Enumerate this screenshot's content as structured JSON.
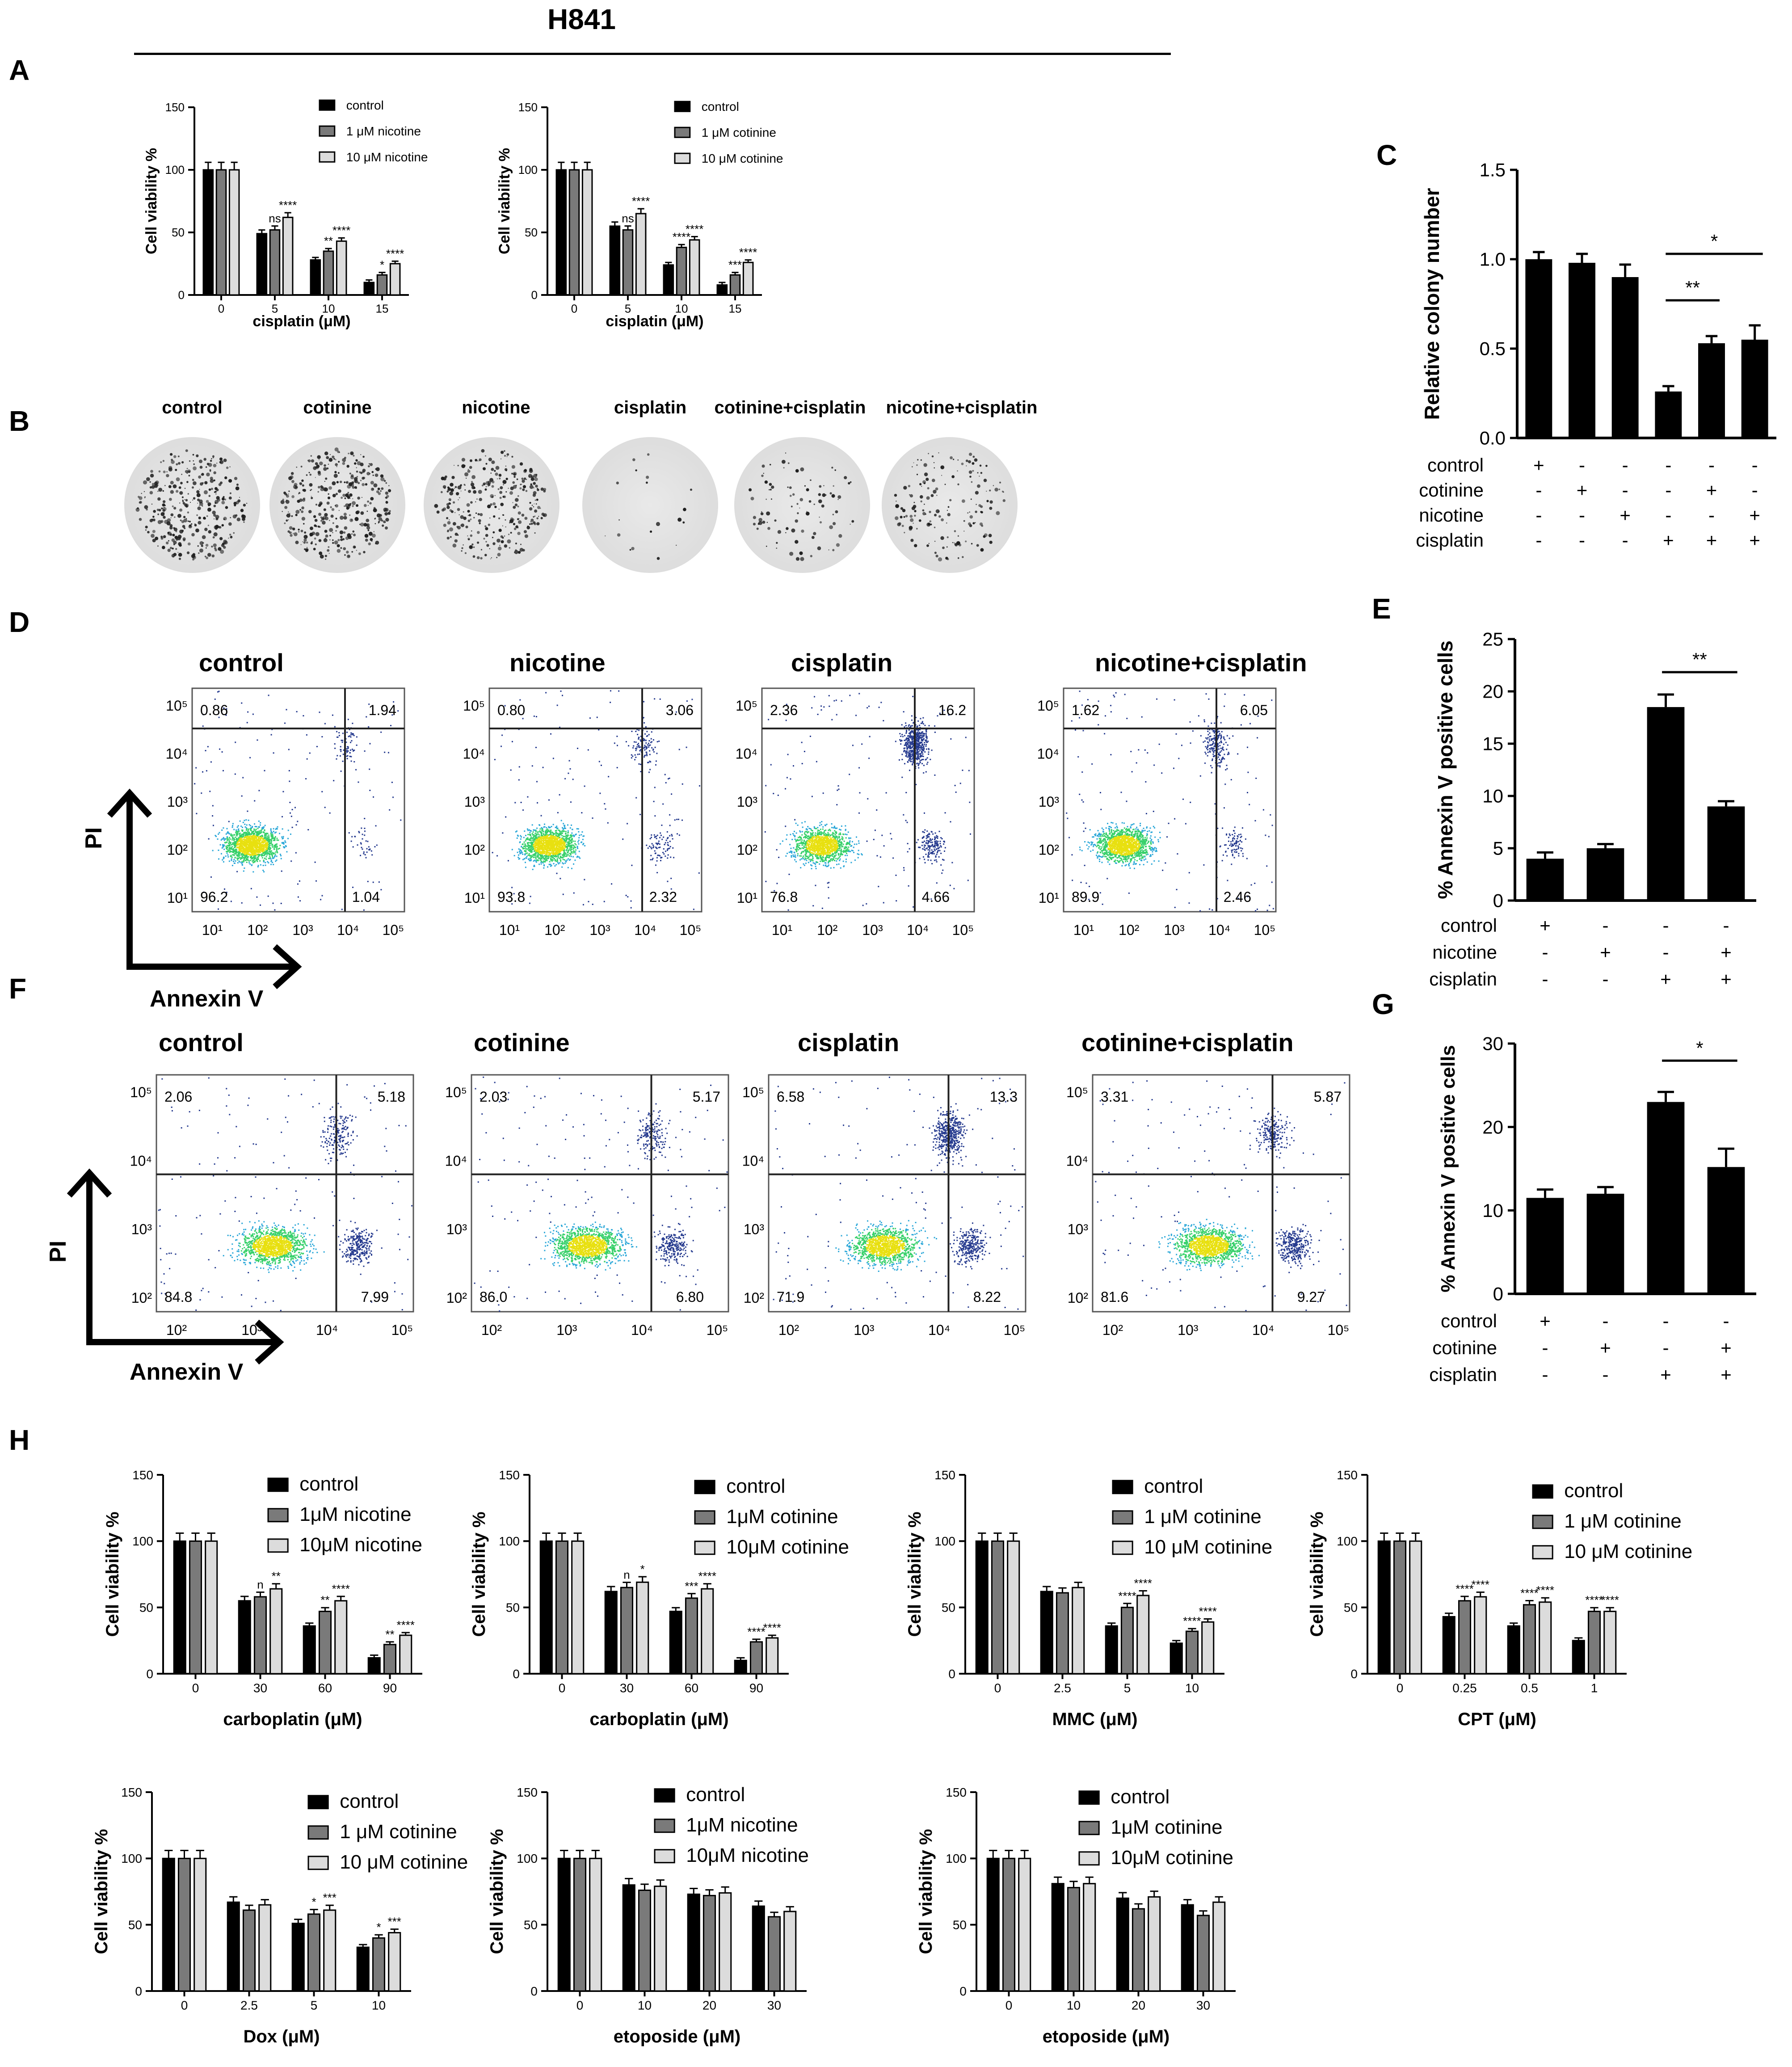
{
  "header": {
    "title": "H841"
  },
  "panel_letters": [
    "A",
    "B",
    "C",
    "D",
    "E",
    "F",
    "G",
    "H"
  ],
  "axis_labels": {
    "pi": "PI",
    "annexin": "Annex​in V"
  },
  "colony_dishes": {
    "labels": [
      "control",
      "cotinine",
      "nicotine",
      "cisplatin",
      "cotinine+cisplatin",
      "nicotine+cisplatin"
    ],
    "colony_density": [
      0.9,
      1.0,
      0.85,
      0.05,
      0.25,
      0.45
    ]
  },
  "flow_D": [
    {
      "title": "control",
      "q": [
        "0.86",
        "1.94",
        "96.2",
        "1.04"
      ],
      "ticks": [
        "10¹",
        "10²",
        "10³",
        "10⁴",
        "10⁵"
      ]
    },
    {
      "title": "nicotine",
      "q": [
        "0.80",
        "3.06",
        "93.8",
        "2.32"
      ],
      "ticks": [
        "10¹",
        "10²",
        "10³",
        "10⁴",
        "10⁵"
      ]
    },
    {
      "title": "cisplatin",
      "q": [
        "2.36",
        "16.2",
        "76.8",
        "4.66"
      ],
      "ticks": [
        "10¹",
        "10²",
        "10³",
        "10⁴",
        "10⁵"
      ]
    },
    {
      "title": "nicotine+cisplatin",
      "q": [
        "1.62",
        "6.05",
        "89.9",
        "2.46"
      ],
      "ticks": [
        "10¹",
        "10²",
        "10³",
        "10⁴",
        "10⁵"
      ]
    }
  ],
  "flow_F": [
    {
      "title": "control",
      "q": [
        "2.06",
        "5.18",
        "84.8",
        "7.99"
      ],
      "ticks": [
        "10²",
        "10³",
        "10⁴",
        "10⁵"
      ]
    },
    {
      "title": "cotinine",
      "q": [
        "2.03",
        "5.17",
        "86.0",
        "6.80"
      ],
      "ticks": [
        "10²",
        "10³",
        "10⁴",
        "10⁵"
      ]
    },
    {
      "title": "cisplatin",
      "q": [
        "6.58",
        "13.3",
        "71.9",
        "8.22"
      ],
      "ticks": [
        "10²",
        "10³",
        "10⁴",
        "10⁵"
      ]
    },
    {
      "title": "cotinine+cisplatin",
      "q": [
        "3.31",
        "5.87",
        "81.6",
        "9.27"
      ],
      "ticks": [
        "10²",
        "10³",
        "10⁴",
        "10⁵"
      ]
    }
  ],
  "chart_data": [
    {
      "id": "A1",
      "type": "bar",
      "ylabel": "Cell viability %",
      "xlabel": "cisplatin (μM)",
      "ylim": [
        0,
        150
      ],
      "yticks": [
        0,
        50,
        100,
        150
      ],
      "categories": [
        "0",
        "5",
        "10",
        "15"
      ],
      "series": [
        {
          "name": "control",
          "values": [
            100,
            49,
            28,
            10
          ]
        },
        {
          "name": "1 μM nicotine",
          "values": [
            100,
            52,
            35,
            16
          ]
        },
        {
          "name": "10 μM nicotine",
          "values": [
            100,
            62,
            43,
            25
          ]
        }
      ],
      "annotations": [
        [
          "",
          "",
          ""
        ],
        [
          "",
          "ns",
          "****"
        ],
        [
          "",
          "**",
          "****"
        ],
        [
          "",
          "*",
          "****"
        ]
      ]
    },
    {
      "id": "A2",
      "type": "bar",
      "ylabel": "Cell viability %",
      "xlabel": "cisplatin (μM)",
      "ylim": [
        0,
        150
      ],
      "yticks": [
        0,
        50,
        100,
        150
      ],
      "categories": [
        "0",
        "5",
        "10",
        "15"
      ],
      "series": [
        {
          "name": "control",
          "values": [
            100,
            55,
            24,
            8
          ]
        },
        {
          "name": "1 μM cotinine",
          "values": [
            100,
            52,
            38,
            16
          ]
        },
        {
          "name": "10 μM cotinine",
          "values": [
            100,
            65,
            44,
            26
          ]
        }
      ],
      "annotations": [
        [
          "",
          "",
          ""
        ],
        [
          "",
          "ns",
          "****"
        ],
        [
          "",
          "****",
          "****"
        ],
        [
          "",
          "***",
          "****"
        ]
      ]
    },
    {
      "id": "C",
      "type": "bar",
      "ylabel": "Relative colony number",
      "ylim": [
        0,
        1.5
      ],
      "yticks": [
        "0.0",
        "0.5",
        "1.0",
        "1.5"
      ],
      "categories": [
        "1",
        "2",
        "3",
        "4",
        "5",
        "6"
      ],
      "values": [
        1.0,
        0.98,
        0.9,
        0.26,
        0.53,
        0.55
      ],
      "errors": [
        0.04,
        0.05,
        0.07,
        0.03,
        0.04,
        0.08
      ],
      "conditions": [
        {
          "name": "control",
          "marks": [
            "+",
            "-",
            "-",
            "-",
            "-",
            "-"
          ]
        },
        {
          "name": "cotinine",
          "marks": [
            "-",
            "+",
            "-",
            "-",
            "+",
            "-"
          ]
        },
        {
          "name": "nicotine",
          "marks": [
            "-",
            "-",
            "+",
            "-",
            "-",
            "+"
          ]
        },
        {
          "name": "cisplatin",
          "marks": [
            "-",
            "-",
            "-",
            "+",
            "+",
            "+"
          ]
        }
      ],
      "significance": [
        {
          "from": 3,
          "to": 4,
          "label": "**"
        },
        {
          "from": 3,
          "to": 5,
          "label": "*"
        }
      ]
    },
    {
      "id": "E",
      "type": "bar",
      "ylabel": "% Annexin V positive cells",
      "ylim": [
        0,
        25
      ],
      "yticks": [
        "0",
        "5",
        "10",
        "15",
        "20",
        "25"
      ],
      "categories": [
        "1",
        "2",
        "3",
        "4"
      ],
      "values": [
        4,
        5,
        18.5,
        9
      ],
      "errors": [
        0.6,
        0.4,
        1.2,
        0.5
      ],
      "conditions": [
        {
          "name": "control",
          "marks": [
            "+",
            "-",
            "-",
            "-"
          ]
        },
        {
          "name": "nicotine",
          "marks": [
            "-",
            "+",
            "-",
            "+"
          ]
        },
        {
          "name": "cisplatin",
          "marks": [
            "-",
            "-",
            "+",
            "+"
          ]
        }
      ],
      "significance": [
        {
          "from": 2,
          "to": 3,
          "label": "**"
        }
      ]
    },
    {
      "id": "G",
      "type": "bar",
      "ylabel": "% Annexin V positive cells",
      "ylim": [
        0,
        30
      ],
      "yticks": [
        "0",
        "10",
        "20",
        "30"
      ],
      "categories": [
        "1",
        "2",
        "3",
        "4"
      ],
      "values": [
        11.5,
        12,
        23,
        15.2
      ],
      "errors": [
        1.0,
        0.8,
        1.2,
        2.2
      ],
      "conditions": [
        {
          "name": "control",
          "marks": [
            "+",
            "-",
            "-",
            "-"
          ]
        },
        {
          "name": "cotinine",
          "marks": [
            "-",
            "+",
            "-",
            "+"
          ]
        },
        {
          "name": "cisplatin",
          "marks": [
            "-",
            "-",
            "+",
            "+"
          ]
        }
      ],
      "significance": [
        {
          "from": 2,
          "to": 3,
          "label": "*"
        }
      ]
    },
    {
      "id": "H1",
      "type": "bar",
      "ylabel": "Cell viability %",
      "xlabel": "carboplatin (μM)",
      "ylim": [
        0,
        150
      ],
      "yticks": [
        0,
        50,
        100,
        150
      ],
      "categories": [
        "0",
        "30",
        "60",
        "90"
      ],
      "series": [
        {
          "name": "control",
          "values": [
            100,
            55,
            36,
            12
          ]
        },
        {
          "name": "1μM nicotine",
          "values": [
            100,
            58,
            47,
            22
          ]
        },
        {
          "name": "10μM nicotine",
          "values": [
            100,
            64,
            55,
            29
          ]
        }
      ],
      "annotations": [
        [
          "",
          "",
          ""
        ],
        [
          "",
          "n",
          "**"
        ],
        [
          "",
          "**",
          "****"
        ],
        [
          "",
          "**",
          "****"
        ]
      ]
    },
    {
      "id": "H2",
      "type": "bar",
      "ylabel": "Cell viability %",
      "xlabel": "carboplatin (μM)",
      "ylim": [
        0,
        150
      ],
      "yticks": [
        0,
        50,
        100,
        150
      ],
      "categories": [
        "0",
        "30",
        "60",
        "90"
      ],
      "series": [
        {
          "name": "control",
          "values": [
            100,
            62,
            47,
            10
          ]
        },
        {
          "name": "1μM cotinine",
          "values": [
            100,
            65,
            57,
            24
          ]
        },
        {
          "name": "10μM cotinine",
          "values": [
            100,
            69,
            64,
            27
          ]
        }
      ],
      "annotations": [
        [
          "",
          "",
          ""
        ],
        [
          "",
          "n",
          "*"
        ],
        [
          "",
          "***",
          "****"
        ],
        [
          "",
          "****",
          "****"
        ]
      ]
    },
    {
      "id": "H3",
      "type": "bar",
      "ylabel": "Cell viability %",
      "xlabel": "MMC (μM)",
      "ylim": [
        0,
        150
      ],
      "yticks": [
        0,
        50,
        100,
        150
      ],
      "categories": [
        "0",
        "2.5",
        "5",
        "10"
      ],
      "series": [
        {
          "name": "control",
          "values": [
            100,
            62,
            36,
            23
          ]
        },
        {
          "name": "1 μM cotinine",
          "values": [
            100,
            61,
            50,
            32
          ]
        },
        {
          "name": "10 μM cotinine",
          "values": [
            100,
            65,
            59,
            39
          ]
        }
      ],
      "annotations": [
        [
          "",
          "",
          ""
        ],
        [
          "",
          "",
          ""
        ],
        [
          "",
          "****",
          "****"
        ],
        [
          "",
          "****",
          "****"
        ]
      ]
    },
    {
      "id": "H4",
      "type": "bar",
      "ylabel": "Cell viability %",
      "xlabel": "CPT (μM)",
      "ylim": [
        0,
        150
      ],
      "yticks": [
        0,
        50,
        100,
        150
      ],
      "categories": [
        "0",
        "0.25",
        "0.5",
        "1"
      ],
      "series": [
        {
          "name": "control",
          "values": [
            100,
            43,
            36,
            25
          ]
        },
        {
          "name": "1 μM cotinine",
          "values": [
            100,
            55,
            52,
            47
          ]
        },
        {
          "name": "10 μM cotinine",
          "values": [
            100,
            58,
            54,
            47
          ]
        }
      ],
      "annotations": [
        [
          "",
          "",
          ""
        ],
        [
          "",
          "****",
          "****"
        ],
        [
          "",
          "****",
          "****"
        ],
        [
          "",
          "****",
          "****"
        ]
      ]
    },
    {
      "id": "H5",
      "type": "bar",
      "ylabel": "Cell viability %",
      "xlabel": "Dox (μM)",
      "ylim": [
        0,
        150
      ],
      "yticks": [
        0,
        50,
        100,
        150
      ],
      "categories": [
        "0",
        "2.5",
        "5",
        "10"
      ],
      "series": [
        {
          "name": "control",
          "values": [
            100,
            67,
            51,
            33
          ]
        },
        {
          "name": "1 μM cotinine",
          "values": [
            100,
            61,
            58,
            40
          ]
        },
        {
          "name": "10 μM cotinine",
          "values": [
            100,
            65,
            61,
            44
          ]
        }
      ],
      "annotations": [
        [
          "",
          "",
          ""
        ],
        [
          "",
          "",
          ""
        ],
        [
          "",
          "*",
          "***"
        ],
        [
          "",
          "*",
          "***"
        ]
      ]
    },
    {
      "id": "H6",
      "type": "bar",
      "ylabel": "Cell viability %",
      "xlabel": "etoposide (μM)",
      "ylim": [
        0,
        150
      ],
      "yticks": [
        0,
        50,
        100,
        150
      ],
      "categories": [
        "0",
        "10",
        "20",
        "30"
      ],
      "series": [
        {
          "name": "control",
          "values": [
            100,
            80,
            73,
            64
          ]
        },
        {
          "name": "1μM nicotine",
          "values": [
            100,
            76,
            72,
            56
          ]
        },
        {
          "name": "10μM nicotine",
          "values": [
            100,
            79,
            74,
            60
          ]
        }
      ],
      "annotations": [
        [
          "",
          "",
          ""
        ],
        [
          "",
          "",
          ""
        ],
        [
          "",
          "",
          ""
        ],
        [
          "",
          "",
          ""
        ]
      ]
    },
    {
      "id": "H7",
      "type": "bar",
      "ylabel": "Cell viability %",
      "xlabel": "etoposide (μM)",
      "ylim": [
        0,
        150
      ],
      "yticks": [
        0,
        50,
        100,
        150
      ],
      "categories": [
        "0",
        "10",
        "20",
        "30"
      ],
      "series": [
        {
          "name": "control",
          "values": [
            100,
            81,
            70,
            65
          ]
        },
        {
          "name": "1μM cotinine",
          "values": [
            100,
            78,
            62,
            57
          ]
        },
        {
          "name": "10μM cotinine",
          "values": [
            100,
            81,
            71,
            67
          ]
        }
      ],
      "annotations": [
        [
          "",
          "",
          ""
        ],
        [
          "",
          "",
          ""
        ],
        [
          "",
          "",
          ""
        ],
        [
          "",
          "",
          ""
        ]
      ]
    }
  ]
}
